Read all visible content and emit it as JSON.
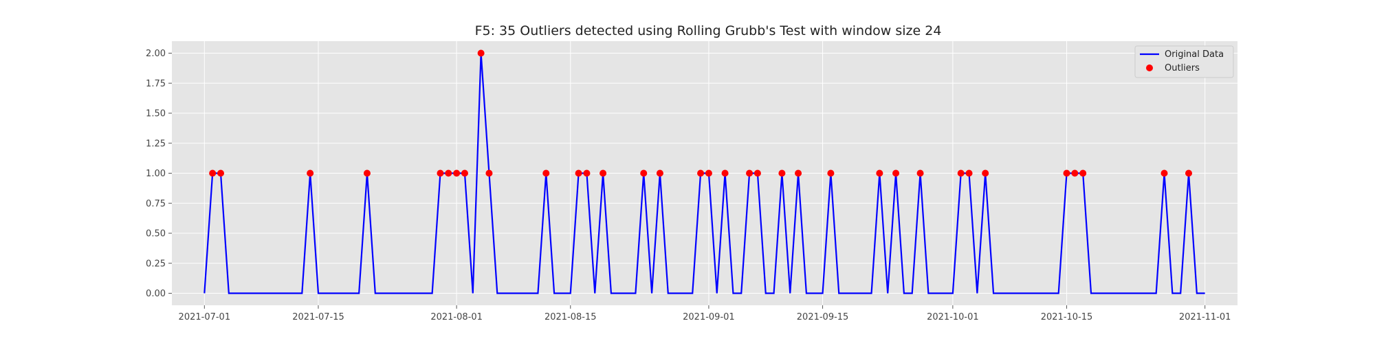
{
  "chart_data": {
    "type": "line",
    "title": "F5: 35 Outliers detected using Rolling Grubb's Test with window size 24",
    "xlabel": "",
    "ylabel": "",
    "x_start": "2021-07-01",
    "x_end": "2021-11-01",
    "xlim": [
      "2021-06-27",
      "2021-11-05"
    ],
    "ylim": [
      -0.1,
      2.1
    ],
    "x_ticks": [
      "2021-07-01",
      "2021-07-15",
      "2021-08-01",
      "2021-08-15",
      "2021-09-01",
      "2021-09-15",
      "2021-10-01",
      "2021-10-15",
      "2021-11-01"
    ],
    "y_ticks": [
      "0.00",
      "0.25",
      "0.50",
      "0.75",
      "1.00",
      "1.25",
      "1.50",
      "1.75",
      "2.00"
    ],
    "grid": true,
    "legend_position": "top-right",
    "colors": {
      "background": "#e5e5e5",
      "grid": "#ffffff",
      "line": "#0000ff",
      "outlier": "#ff0000"
    },
    "series": [
      {
        "name": "Original Data",
        "kind": "line",
        "baseline": 0,
        "spikes": [
          {
            "x": "2021-07-02",
            "y": 1
          },
          {
            "x": "2021-07-03",
            "y": 1
          },
          {
            "x": "2021-07-14",
            "y": 1
          },
          {
            "x": "2021-07-21",
            "y": 1
          },
          {
            "x": "2021-07-30",
            "y": 1
          },
          {
            "x": "2021-07-31",
            "y": 1
          },
          {
            "x": "2021-08-01",
            "y": 1
          },
          {
            "x": "2021-08-02",
            "y": 1
          },
          {
            "x": "2021-08-04",
            "y": 2
          },
          {
            "x": "2021-08-05",
            "y": 1
          },
          {
            "x": "2021-08-12",
            "y": 1
          },
          {
            "x": "2021-08-16",
            "y": 1
          },
          {
            "x": "2021-08-17",
            "y": 1
          },
          {
            "x": "2021-08-19",
            "y": 1
          },
          {
            "x": "2021-08-24",
            "y": 1
          },
          {
            "x": "2021-08-26",
            "y": 1
          },
          {
            "x": "2021-08-31",
            "y": 1
          },
          {
            "x": "2021-09-01",
            "y": 1
          },
          {
            "x": "2021-09-03",
            "y": 1
          },
          {
            "x": "2021-09-06",
            "y": 1
          },
          {
            "x": "2021-09-07",
            "y": 1
          },
          {
            "x": "2021-09-10",
            "y": 1
          },
          {
            "x": "2021-09-12",
            "y": 1
          },
          {
            "x": "2021-09-16",
            "y": 1
          },
          {
            "x": "2021-09-22",
            "y": 1
          },
          {
            "x": "2021-09-24",
            "y": 1
          },
          {
            "x": "2021-09-27",
            "y": 1
          },
          {
            "x": "2021-10-02",
            "y": 1
          },
          {
            "x": "2021-10-03",
            "y": 1
          },
          {
            "x": "2021-10-05",
            "y": 1
          },
          {
            "x": "2021-10-15",
            "y": 1
          },
          {
            "x": "2021-10-16",
            "y": 1
          },
          {
            "x": "2021-10-17",
            "y": 1
          },
          {
            "x": "2021-10-27",
            "y": 1
          },
          {
            "x": "2021-10-30",
            "y": 1
          }
        ]
      },
      {
        "name": "Outliers",
        "kind": "scatter",
        "points": [
          {
            "x": "2021-07-02",
            "y": 1
          },
          {
            "x": "2021-07-03",
            "y": 1
          },
          {
            "x": "2021-07-14",
            "y": 1
          },
          {
            "x": "2021-07-21",
            "y": 1
          },
          {
            "x": "2021-07-30",
            "y": 1
          },
          {
            "x": "2021-07-31",
            "y": 1
          },
          {
            "x": "2021-08-01",
            "y": 1
          },
          {
            "x": "2021-08-02",
            "y": 1
          },
          {
            "x": "2021-08-04",
            "y": 2
          },
          {
            "x": "2021-08-05",
            "y": 1
          },
          {
            "x": "2021-08-12",
            "y": 1
          },
          {
            "x": "2021-08-16",
            "y": 1
          },
          {
            "x": "2021-08-17",
            "y": 1
          },
          {
            "x": "2021-08-19",
            "y": 1
          },
          {
            "x": "2021-08-24",
            "y": 1
          },
          {
            "x": "2021-08-26",
            "y": 1
          },
          {
            "x": "2021-08-31",
            "y": 1
          },
          {
            "x": "2021-09-01",
            "y": 1
          },
          {
            "x": "2021-09-03",
            "y": 1
          },
          {
            "x": "2021-09-06",
            "y": 1
          },
          {
            "x": "2021-09-07",
            "y": 1
          },
          {
            "x": "2021-09-10",
            "y": 1
          },
          {
            "x": "2021-09-12",
            "y": 1
          },
          {
            "x": "2021-09-16",
            "y": 1
          },
          {
            "x": "2021-09-22",
            "y": 1
          },
          {
            "x": "2021-09-24",
            "y": 1
          },
          {
            "x": "2021-09-27",
            "y": 1
          },
          {
            "x": "2021-10-02",
            "y": 1
          },
          {
            "x": "2021-10-03",
            "y": 1
          },
          {
            "x": "2021-10-05",
            "y": 1
          },
          {
            "x": "2021-10-15",
            "y": 1
          },
          {
            "x": "2021-10-16",
            "y": 1
          },
          {
            "x": "2021-10-17",
            "y": 1
          },
          {
            "x": "2021-10-27",
            "y": 1
          },
          {
            "x": "2021-10-30",
            "y": 1
          }
        ]
      }
    ]
  }
}
